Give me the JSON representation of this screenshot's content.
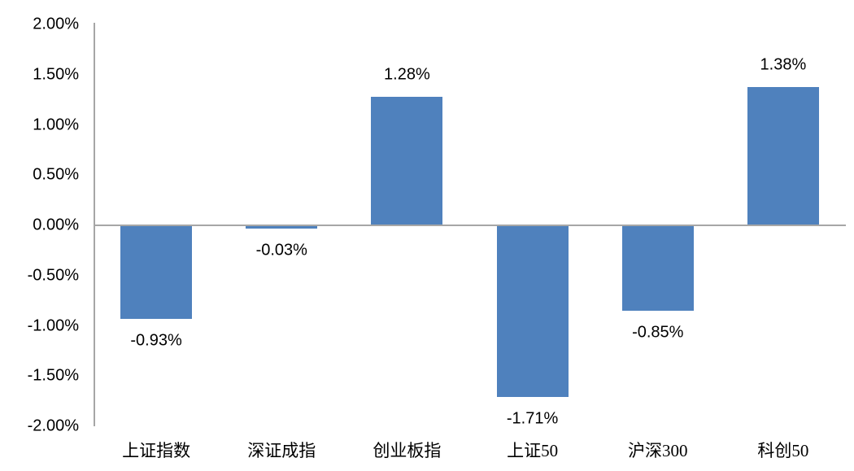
{
  "chart_data": {
    "type": "bar",
    "title": "",
    "xlabel": "",
    "ylabel": "",
    "categories": [
      "上证指数",
      "深证成指",
      "创业板指",
      "上证50",
      "沪深300",
      "科创50"
    ],
    "values": [
      -0.93,
      -0.03,
      1.28,
      -1.71,
      -0.85,
      1.38
    ],
    "value_labels": [
      "-0.93%",
      "-0.03%",
      "1.28%",
      "-1.71%",
      "-0.85%",
      "1.38%"
    ],
    "yticks": [
      "2.00%",
      "1.50%",
      "1.00%",
      "0.50%",
      "0.00%",
      "-0.50%",
      "-1.00%",
      "-1.50%",
      "-2.00%"
    ],
    "ytick_values": [
      2.0,
      1.5,
      1.0,
      0.5,
      0.0,
      -0.5,
      -1.0,
      -1.5,
      -2.0
    ],
    "ylim": [
      -2.0,
      2.0
    ],
    "grid": false,
    "legend": false,
    "colors": {
      "bar": "#4F81BD",
      "axis": "#A6A6A6",
      "text": "#000000",
      "background": "#FFFFFF"
    }
  }
}
